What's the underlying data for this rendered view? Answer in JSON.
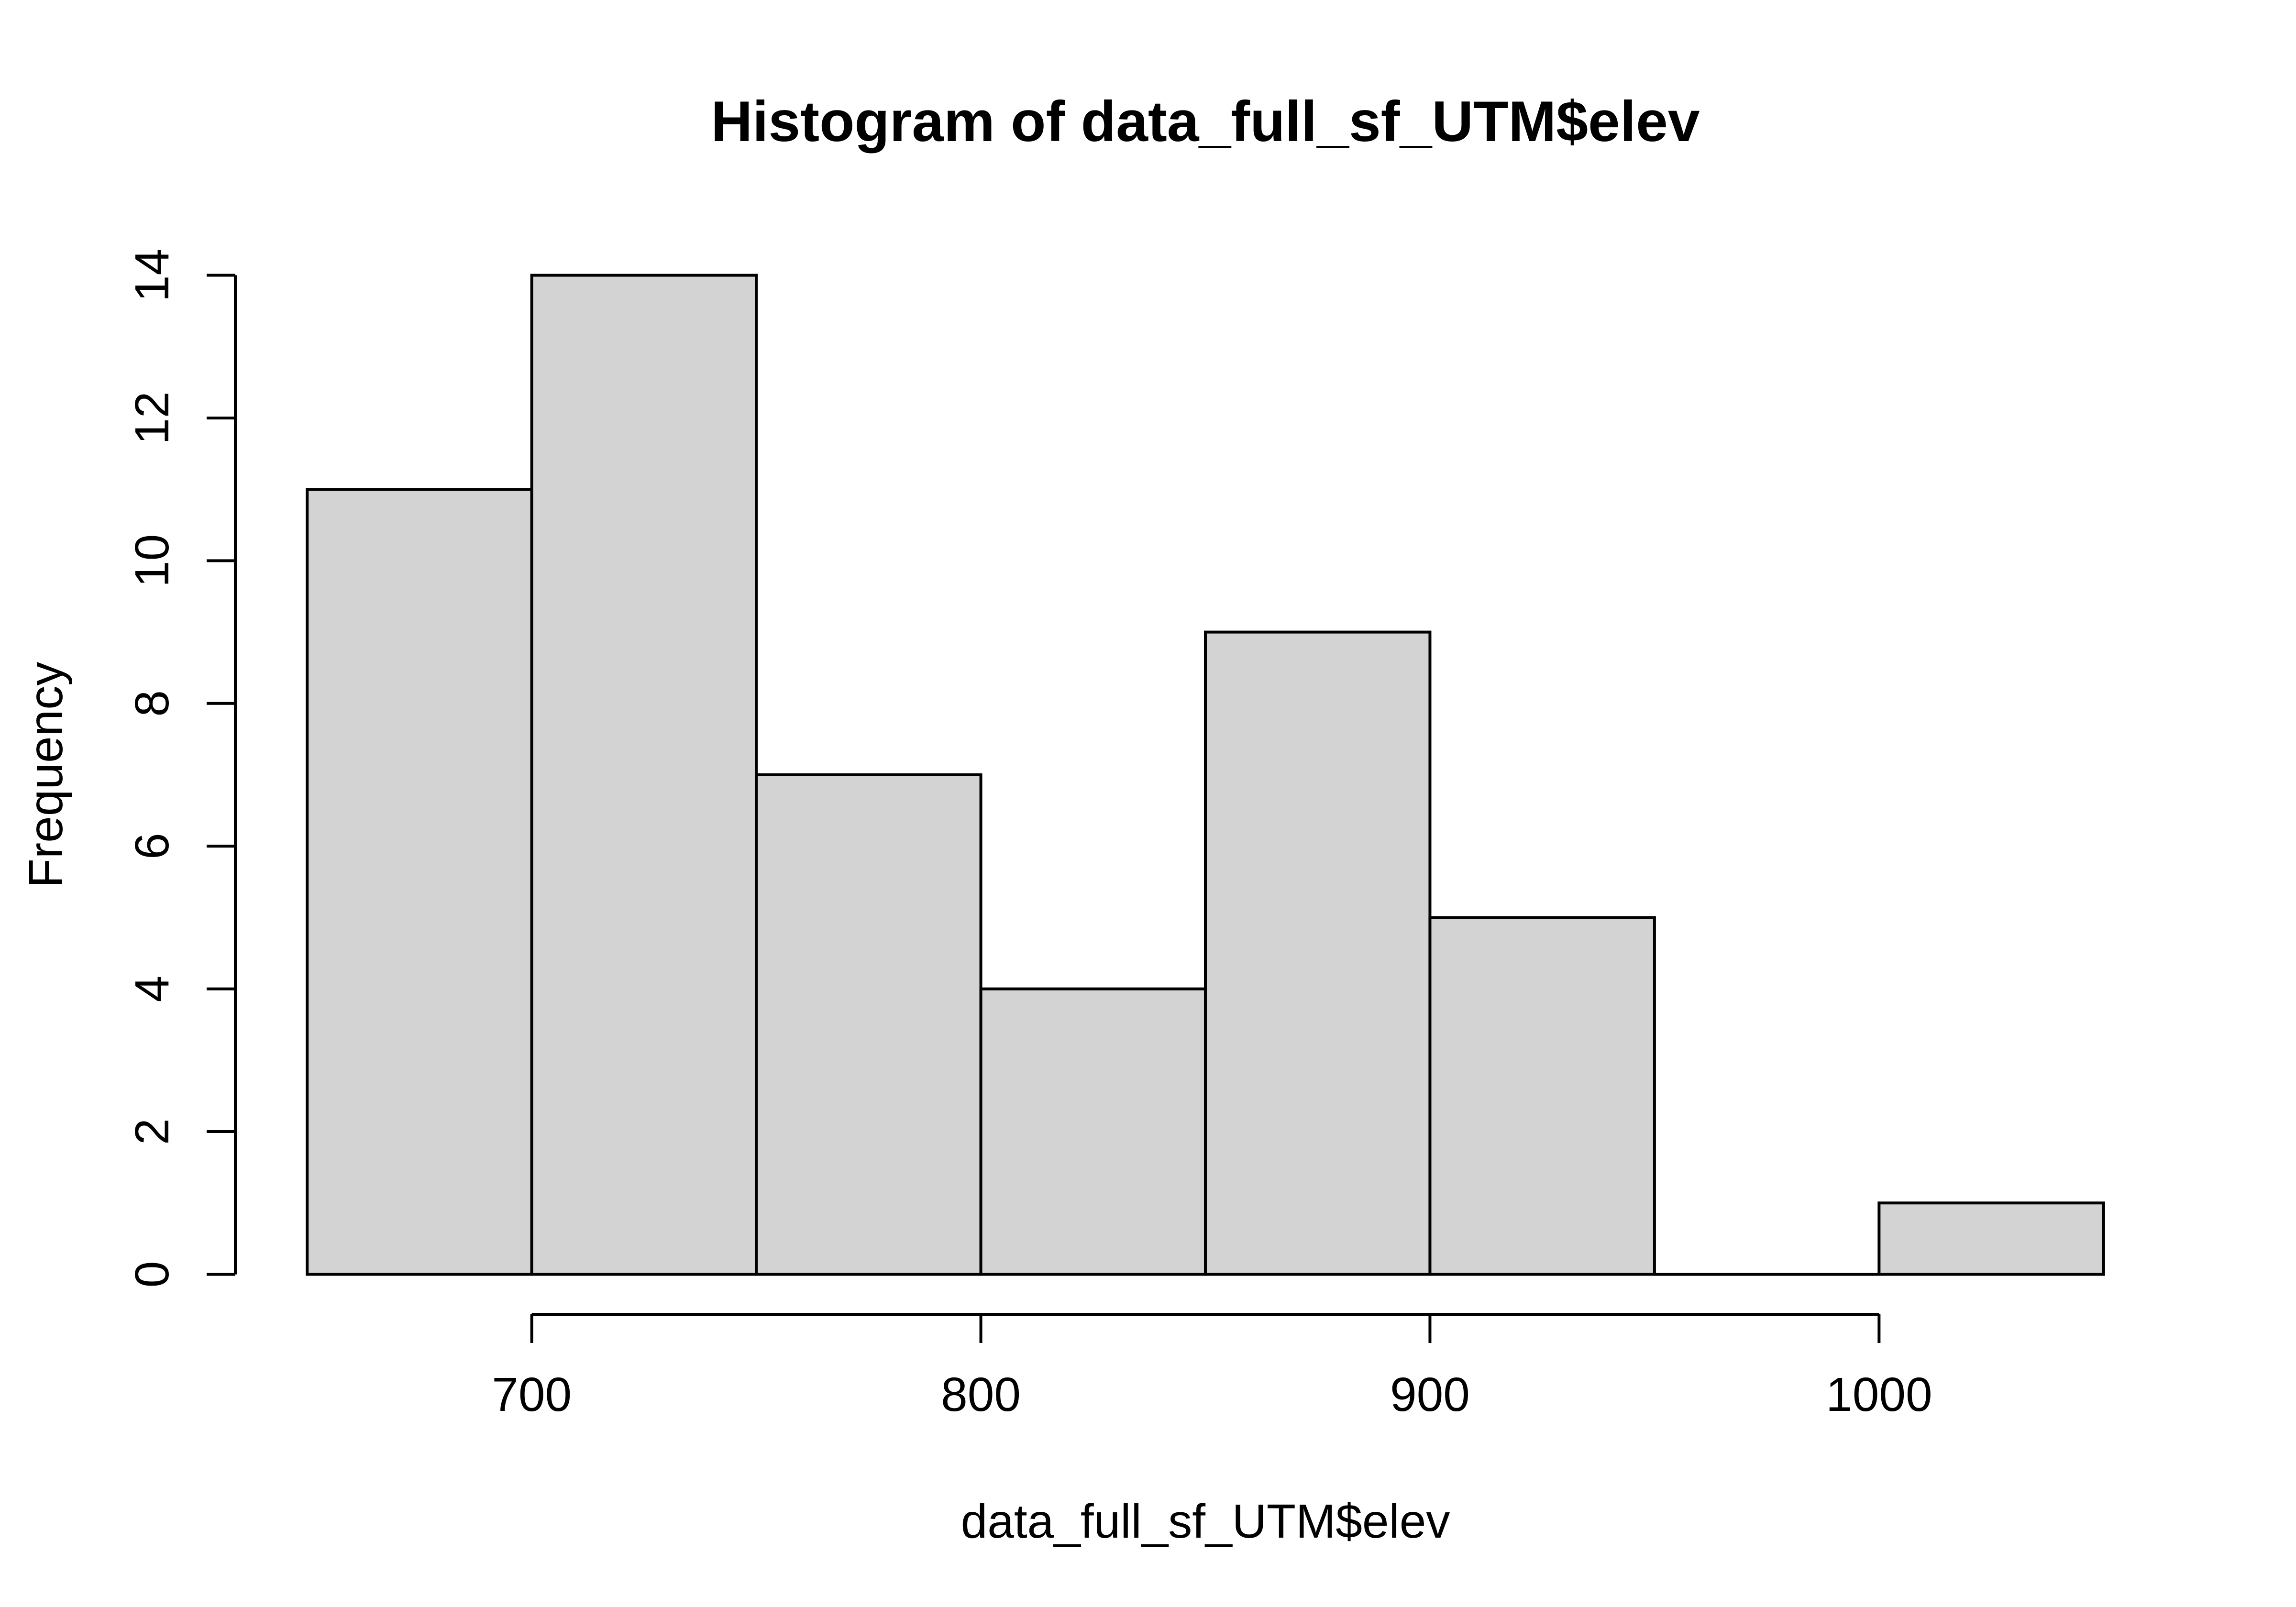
{
  "title": "Histogram of data_full_sf_UTM$elev",
  "colors": {
    "background": "#ffffff",
    "bar_fill": "#d3d3d3",
    "bar_stroke": "#000000",
    "axis": "#000000",
    "text": "#000000"
  },
  "chart_data": {
    "type": "bar",
    "subtype": "histogram",
    "title": "Histogram of data_full_sf_UTM$elev",
    "xlabel": "data_full_sf_UTM$elev",
    "ylabel": "Frequency",
    "bin_edges": [
      650,
      700,
      750,
      800,
      850,
      900,
      950,
      1000,
      1050
    ],
    "counts": [
      11,
      14,
      7,
      4,
      9,
      5,
      0,
      1
    ],
    "x_ticks": [
      700,
      800,
      900,
      1000
    ],
    "y_ticks": [
      0,
      2,
      4,
      6,
      8,
      10,
      12,
      14
    ],
    "xlim": [
      650,
      1050
    ],
    "ylim": [
      0,
      14
    ],
    "grid": false,
    "legend": false
  }
}
